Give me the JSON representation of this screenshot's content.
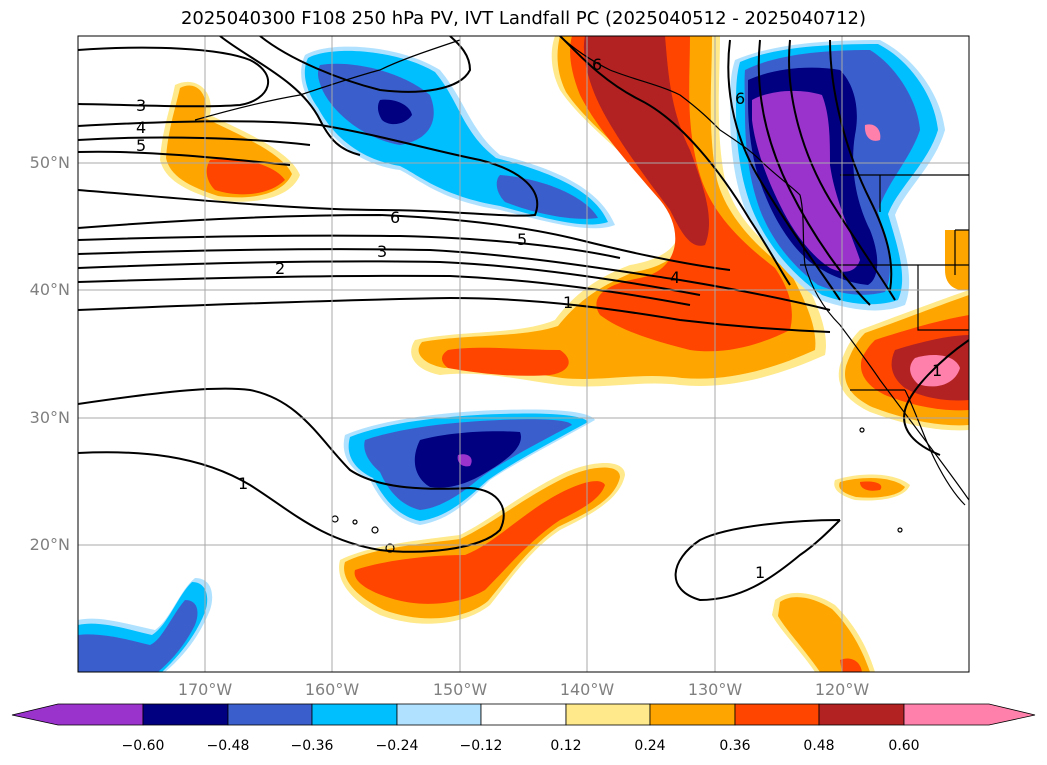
{
  "title": "2025040300 F108 250 hPa PV, IVT Landfall PC (2025040512 - 2025040712)",
  "lat_labels": [
    "50°N",
    "40°N",
    "30°N",
    "20°N"
  ],
  "lon_labels": [
    "170°W",
    "160°W",
    "150°W",
    "140°W",
    "130°W",
    "120°W"
  ],
  "colorbar": {
    "colors": [
      "#9933cc",
      "#000080",
      "#3a5fcd",
      "#00bfff",
      "#b0e2ff",
      "#ffffff",
      "#ffe98a",
      "#ffa500",
      "#ff4500",
      "#b22222",
      "#ff80ab"
    ],
    "tick_labels": [
      "−0.60",
      "−0.48",
      "−0.36",
      "−0.24",
      "−0.12",
      "0.12",
      "0.24",
      "0.36",
      "0.48",
      "0.60"
    ]
  },
  "contour_labels": [
    "3",
    "4",
    "5",
    "6",
    "5",
    "3",
    "2",
    "4",
    "1",
    "1",
    "1",
    "1",
    "6",
    "6"
  ]
}
